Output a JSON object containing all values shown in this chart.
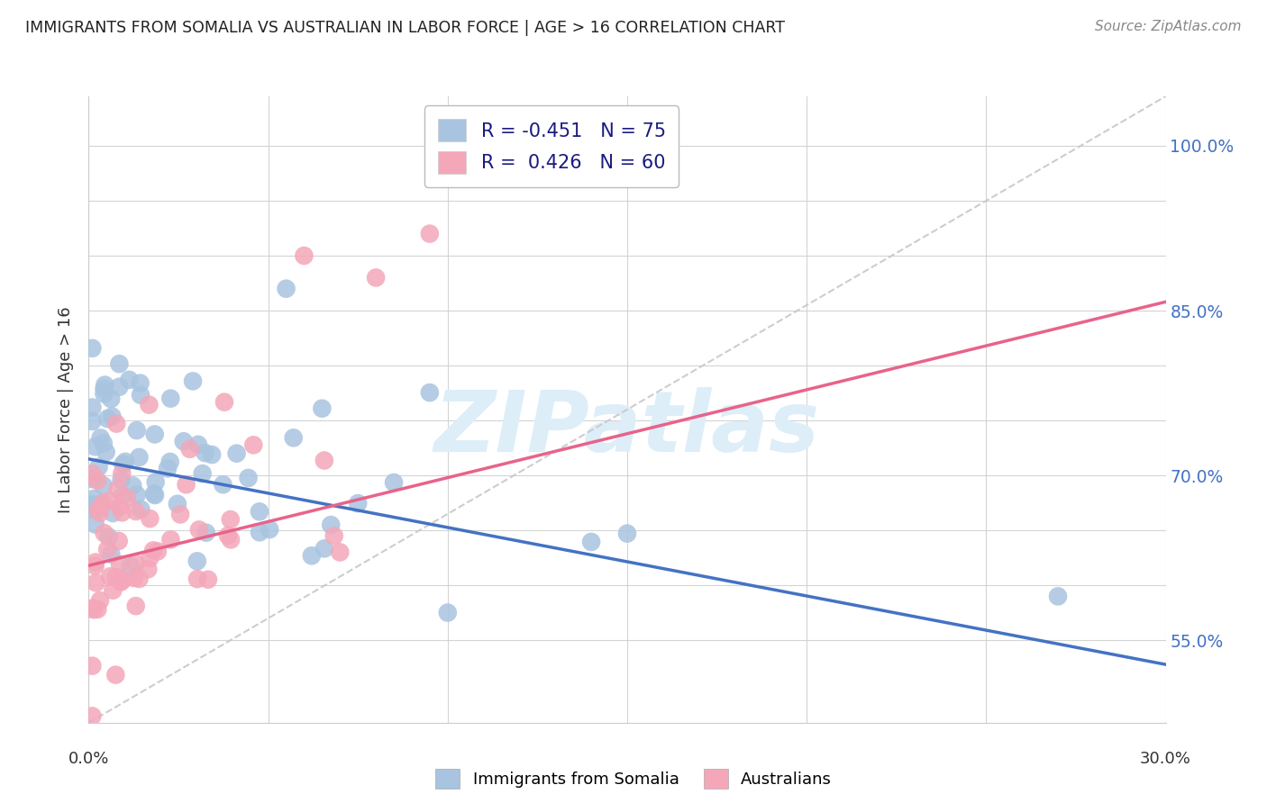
{
  "title": "IMMIGRANTS FROM SOMALIA VS AUSTRALIAN IN LABOR FORCE | AGE > 16 CORRELATION CHART",
  "source": "Source: ZipAtlas.com",
  "ylabel": "In Labor Force | Age > 16",
  "r_somalia": -0.451,
  "n_somalia": 75,
  "r_australian": 0.426,
  "n_australian": 60,
  "color_somalia": "#a8c4e0",
  "color_australian": "#f4a7b9",
  "line_color_somalia": "#4472c4",
  "line_color_australian": "#e8638a",
  "dashed_line_color": "#c8c8c8",
  "background_color": "#ffffff",
  "grid_color": "#d0d0d0",
  "watermark_text": "ZIPatlas",
  "watermark_color": "#ddeef8",
  "xlim": [
    0.0,
    0.3
  ],
  "ylim": [
    0.475,
    1.045
  ],
  "y_ticks": [
    0.55,
    0.6,
    0.65,
    0.7,
    0.75,
    0.8,
    0.85,
    0.9,
    0.95,
    1.0
  ],
  "y_tick_labels_right": [
    "55.0%",
    "",
    "",
    "70.0%",
    "",
    "",
    "85.0%",
    "",
    "",
    "100.0%"
  ],
  "x_ticks": [
    0.0,
    0.05,
    0.1,
    0.15,
    0.2,
    0.25,
    0.3
  ],
  "legend_label_somalia": "R = -0.451   N = 75",
  "legend_label_australian": "R =  0.426   N = 60",
  "bottom_legend_somalia": "Immigrants from Somalia",
  "bottom_legend_australian": "Australians",
  "soma_line_x0": 0.0,
  "soma_line_y0": 0.715,
  "soma_line_x1": 0.3,
  "soma_line_y1": 0.528,
  "aus_line_x0": 0.0,
  "aus_line_y0": 0.618,
  "aus_line_x1": 0.3,
  "aus_line_y1": 0.858,
  "dash_line_x0": 0.0,
  "dash_line_y0": 0.475,
  "dash_line_x1": 0.3,
  "dash_line_y1": 1.045
}
